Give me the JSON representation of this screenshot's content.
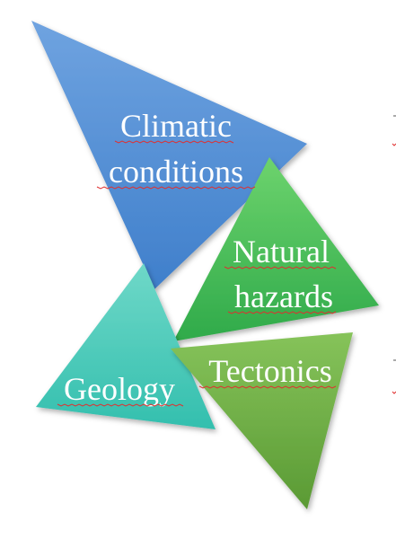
{
  "diagram": {
    "triangles": [
      {
        "id": "climatic",
        "lines": [
          "Climatic",
          "conditions"
        ],
        "color_top": "#6fa3e0",
        "color_bottom": "#3f7fcb"
      },
      {
        "id": "natural",
        "lines": [
          "Natural",
          "hazards"
        ],
        "color_top": "#6dd36d",
        "color_bottom": "#2faa4a"
      },
      {
        "id": "geology",
        "lines": [
          "Geology"
        ],
        "color_top": "#6fd8c8",
        "color_bottom": "#33bfae"
      },
      {
        "id": "tectonics",
        "lines": [
          "Tectonics"
        ],
        "color_top": "#86c35a",
        "color_bottom": "#5a9a34"
      }
    ]
  }
}
